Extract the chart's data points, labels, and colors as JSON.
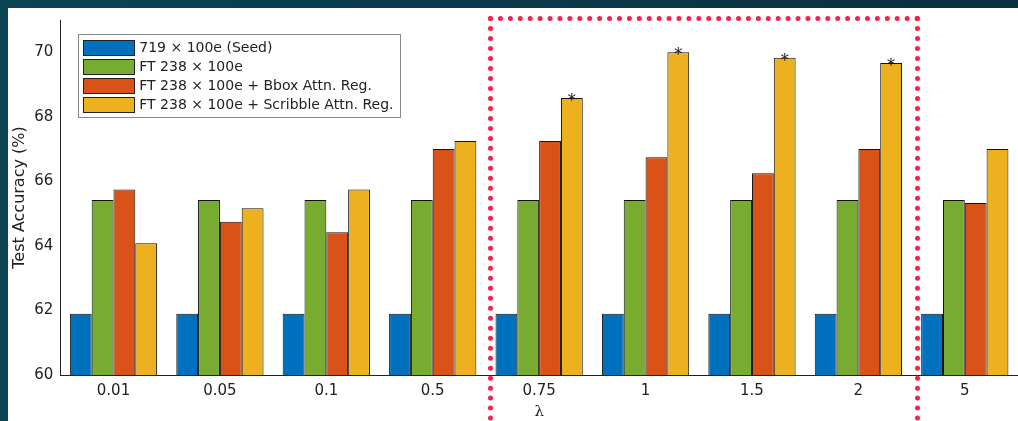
{
  "chart_data": {
    "type": "bar",
    "xlabel": "λ",
    "ylabel": "Test Accuracy (%)",
    "categories": [
      "0.01",
      "0.05",
      "0.1",
      "0.5",
      "0.75",
      "1",
      "1.5",
      "2",
      "5"
    ],
    "series": [
      {
        "name": "719 × 100e (Seed)",
        "color": "#0072bd",
        "values": [
          61.9,
          61.9,
          61.9,
          61.9,
          61.9,
          61.9,
          61.9,
          61.9,
          61.9
        ]
      },
      {
        "name": "FT 238 × 100e",
        "color": "#77ac30",
        "values": [
          65.42,
          65.42,
          65.42,
          65.42,
          65.42,
          65.42,
          65.42,
          65.42,
          65.42
        ]
      },
      {
        "name": "FT 238 × 100e + Bbox Attn. Reg.",
        "color": "#d95319",
        "values": [
          65.75,
          64.75,
          64.42,
          67.0,
          67.25,
          66.75,
          66.25,
          67.0,
          65.33
        ]
      },
      {
        "name": "FT 238 × 100e + Scribble Attn. Reg.",
        "color": "#edb120",
        "values": [
          64.08,
          65.17,
          65.75,
          67.25,
          68.58,
          70.0,
          69.83,
          69.67,
          67.0
        ],
        "value_labels": [
          null,
          null,
          null,
          null,
          "*",
          "*",
          "*",
          "*",
          null
        ]
      }
    ],
    "ylim": [
      60,
      71
    ],
    "yticks": [
      60,
      62,
      64,
      66,
      68,
      70
    ],
    "grid": false,
    "legend": "top left"
  }
}
